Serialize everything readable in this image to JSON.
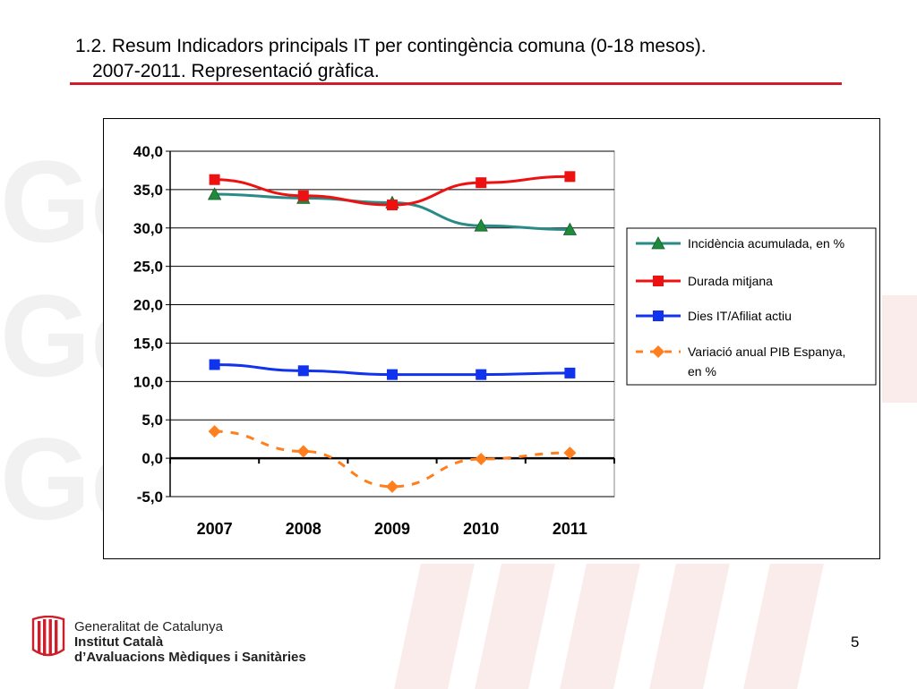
{
  "slide": {
    "title_line1": "1.2. Resum Indicadors principals IT per contingència comuna (0-18 mesos).",
    "title_line2": "2007-2011. Representació gràfica.",
    "page_number": "5",
    "accent_color": "#cc1f2b"
  },
  "footer": {
    "org_line1": "Generalitat de Catalunya",
    "org_line2": "Institut Català",
    "org_line3": "d’Avaluacions Mèdiques i Sanitàries",
    "logo_icon": "catalan-flag-logo-icon"
  },
  "chart_data": {
    "type": "line",
    "categories": [
      "2007",
      "2008",
      "2009",
      "2010",
      "2011"
    ],
    "ylim": [
      -5,
      40
    ],
    "yticks": [
      "-5,0",
      "0,0",
      "5,0",
      "10,0",
      "15,0",
      "20,0",
      "25,0",
      "30,0",
      "35,0",
      "40,0"
    ],
    "grid": true,
    "legend_position": "right",
    "series": [
      {
        "name": "Incidència acumulada, en %",
        "values": [
          34.4,
          33.9,
          33.3,
          30.3,
          29.8
        ],
        "color": "#2a8a86",
        "marker": "triangle",
        "marker_color": "#1f8a3a",
        "dashed": false
      },
      {
        "name": "Durada mitjana",
        "values": [
          36.3,
          34.2,
          33.0,
          35.9,
          36.7
        ],
        "color": "#ee1111",
        "marker": "square",
        "marker_color": "#ee1111",
        "dashed": false
      },
      {
        "name": "Dies IT/Afiliat actiu",
        "values": [
          12.2,
          11.4,
          10.9,
          10.9,
          11.1
        ],
        "color": "#1133ee",
        "marker": "square",
        "marker_color": "#1133ee",
        "dashed": false
      },
      {
        "name": "Variació anual PIB Espanya, en %",
        "values": [
          3.5,
          0.9,
          -3.7,
          -0.1,
          0.7
        ],
        "color": "#ff7f1e",
        "marker": "diamond",
        "marker_color": "#ff7f1e",
        "dashed": true
      }
    ]
  }
}
